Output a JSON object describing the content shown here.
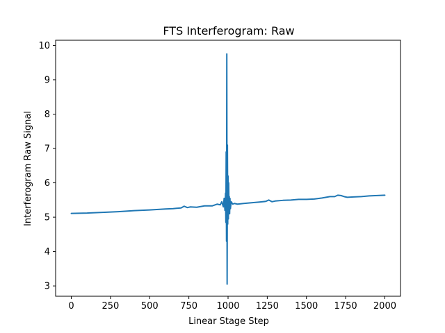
{
  "chart_data": {
    "type": "line",
    "title": "FTS Interferogram: Raw",
    "xlabel": "Linear Stage Step",
    "ylabel": "Interferogram Raw Signal",
    "xlim": [
      -100,
      2100
    ],
    "ylim": [
      2.7,
      10.15
    ],
    "x_ticks": [
      0,
      250,
      500,
      750,
      1000,
      1250,
      1500,
      1750,
      2000
    ],
    "y_ticks": [
      3,
      4,
      5,
      6,
      7,
      8,
      9,
      10
    ],
    "grid": false,
    "legend": "none",
    "series": [
      {
        "color": "#1f77b4",
        "x": [
          0,
          100,
          200,
          300,
          400,
          500,
          600,
          650,
          700,
          720,
          740,
          760,
          800,
          850,
          900,
          930,
          950,
          960,
          970,
          975,
          980,
          984,
          986,
          988,
          990,
          992,
          994,
          996,
          998,
          1000,
          1002,
          1004,
          1006,
          1008,
          1010,
          1012,
          1015,
          1020,
          1030,
          1040,
          1060,
          1100,
          1150,
          1200,
          1240,
          1260,
          1280,
          1300,
          1350,
          1400,
          1450,
          1500,
          1550,
          1600,
          1650,
          1680,
          1700,
          1720,
          1740,
          1760,
          1800,
          1850,
          1900,
          1950,
          2000
        ],
        "y": [
          5.11,
          5.12,
          5.14,
          5.16,
          5.19,
          5.21,
          5.24,
          5.25,
          5.27,
          5.32,
          5.28,
          5.3,
          5.29,
          5.33,
          5.33,
          5.38,
          5.36,
          5.45,
          5.3,
          5.55,
          5.2,
          5.7,
          4.85,
          6.9,
          4.3,
          9.75,
          3.05,
          7.1,
          4.8,
          6.2,
          4.95,
          6.0,
          5.2,
          5.6,
          5.1,
          5.55,
          5.25,
          5.45,
          5.38,
          5.4,
          5.38,
          5.4,
          5.42,
          5.44,
          5.46,
          5.5,
          5.45,
          5.47,
          5.49,
          5.5,
          5.52,
          5.52,
          5.53,
          5.56,
          5.6,
          5.6,
          5.64,
          5.63,
          5.6,
          5.58,
          5.59,
          5.6,
          5.62,
          5.63,
          5.64
        ]
      }
    ]
  }
}
